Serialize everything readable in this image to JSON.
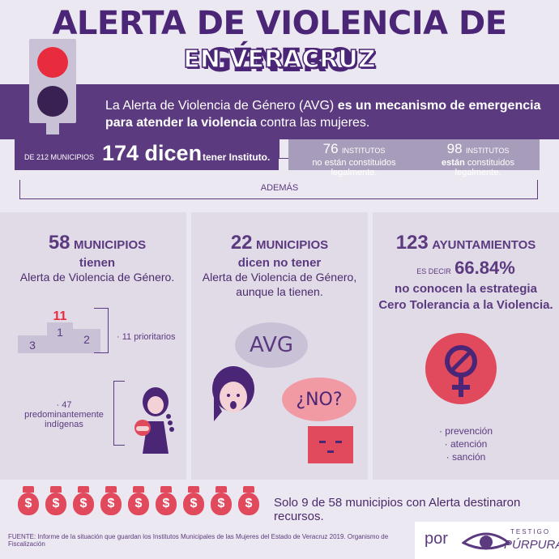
{
  "header": {
    "title_line1": "ALERTA DE VIOLENCIA DE GÉNERO",
    "title_line2": "EN VERACRUZ"
  },
  "intro": {
    "part1": "La Alerta de Violencia de Género (AVG) ",
    "part2_bold": "es un mecanismo de emergencia para atender la violencia",
    "part3": " contra las mujeres."
  },
  "stats": {
    "prefix": "DE 212 MUNICIPIOS",
    "main": "174 dicen",
    "suffix": "tener Instituto.",
    "a_num": "76",
    "a_unit": "INSTITUTOS",
    "a_text": "no están constituidos legalmente.",
    "b_num": "98",
    "b_unit": "INSTITUTOS",
    "b_bold": "están",
    "b_text": " constituidos legalmente."
  },
  "ademas": "ADEMÁS",
  "col1": {
    "num": "58",
    "unit": "MUNICIPIOS",
    "line2": "tienen",
    "line3": "Alerta de Violencia de Género.",
    "podium_red": "11",
    "podium_1": "1",
    "podium_2": "2",
    "podium_3": "3",
    "note1": "· 11 prioritarios",
    "note2_a": "· 47 predominantemente",
    "note2_b": "indígenas"
  },
  "col2": {
    "num": "22",
    "unit": "MUNICIPIOS",
    "line2": "dicen no tener",
    "line3": "Alerta de Violencia de Género,",
    "line4": "aunque la tienen.",
    "bubble1": "AVG",
    "bubble2": "¿NO?"
  },
  "col3": {
    "num": "123",
    "unit": "AYUNTAMIENTOS",
    "es_decir": "ES DECIR",
    "pct": "66.84%",
    "line3": "no conocen la estrategia",
    "line4": "Cero Tolerancia a la Violencia.",
    "items": [
      "· prevención",
      "· atención",
      "· sanción"
    ]
  },
  "resources": {
    "bag_symbol": "$",
    "text": "Solo 9 de 58 municipios con Alerta destinaron recursos."
  },
  "footer": "FUENTE: Informe de la situación que guardan los Institutos Municipales de las Mujeres del Estado de Veracruz 2019. Organismo de Fiscalización",
  "logo": {
    "por": "por",
    "brand1": "TESTIGO",
    "brand2": "PÚRPURA"
  },
  "colors": {
    "purple_dark": "#4b2676",
    "purple": "#5b3a7f",
    "lilac": "#a79cb9",
    "red": "#e14a5c"
  }
}
